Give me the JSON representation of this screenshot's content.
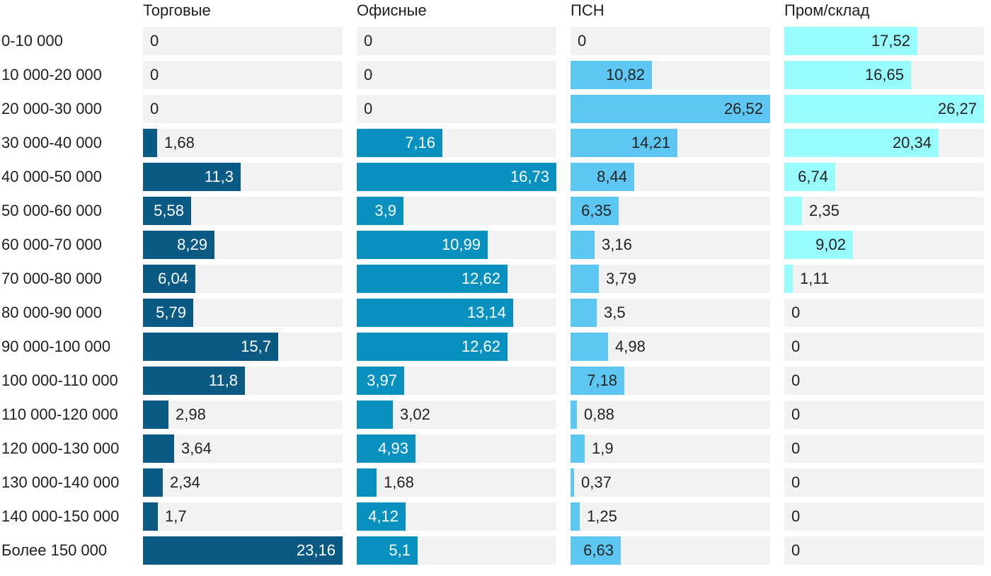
{
  "chart_data": {
    "type": "bar",
    "orientation": "horizontal",
    "layout": "small-multiples",
    "categories": [
      "0-10 000",
      "10 000-20 000",
      "20 000-30 000",
      "30 000-40 000",
      "40 000-50 000",
      "50 000-60 000",
      "60 000-70 000",
      "70 000-80 000",
      "80 000-90 000",
      "90 000-100 000",
      "100 000-110 000",
      "110 000-120 000",
      "120 000-130 000",
      "130 000-140 000",
      "140 000-150 000",
      "Более 150 000"
    ],
    "series": [
      {
        "name": "Торговые",
        "color": "#0a5a84",
        "max": 23.16,
        "values": [
          0,
          0,
          0,
          1.68,
          11.3,
          5.58,
          8.29,
          6.04,
          5.79,
          15.7,
          11.8,
          2.98,
          3.64,
          2.34,
          1.7,
          23.16
        ],
        "labels": [
          "0",
          "0",
          "0",
          "1,68",
          "11,3",
          "5,58",
          "8,29",
          "6,04",
          "5,79",
          "15,7",
          "11,8",
          "2,98",
          "3,64",
          "2,34",
          "1,7",
          "23,16"
        ]
      },
      {
        "name": "Офисные",
        "color": "#0891bf",
        "max": 16.73,
        "values": [
          0,
          0,
          0,
          7.16,
          16.73,
          3.9,
          10.99,
          12.62,
          13.14,
          12.62,
          3.97,
          3.02,
          4.93,
          1.68,
          4.12,
          5.1
        ],
        "labels": [
          "0",
          "0",
          "0",
          "7,16",
          "16,73",
          "3,9",
          "10,99",
          "12,62",
          "13,14",
          "12,62",
          "3,97",
          "3,02",
          "4,93",
          "1,68",
          "4,12",
          "5,1"
        ]
      },
      {
        "name": "ПСН",
        "color": "#5ec6f3",
        "max": 26.52,
        "values": [
          0,
          10.82,
          26.52,
          14.21,
          8.44,
          6.35,
          3.16,
          3.79,
          3.5,
          4.98,
          7.18,
          0.88,
          1.9,
          0.37,
          1.25,
          6.63
        ],
        "labels": [
          "0",
          "10,82",
          "26,52",
          "14,21",
          "8,44",
          "6,35",
          "3,16",
          "3,79",
          "3,5",
          "4,98",
          "7,18",
          "0,88",
          "1,9",
          "0,37",
          "1,25",
          "6,63"
        ]
      },
      {
        "name": "Пром/склад",
        "color": "#98fcff",
        "max": 26.27,
        "values": [
          17.52,
          16.65,
          26.27,
          20.34,
          6.74,
          2.35,
          9.02,
          1.11,
          0,
          0,
          0,
          0,
          0,
          0,
          0,
          0
        ],
        "labels": [
          "17,52",
          "16,65",
          "26,27",
          "20,34",
          "6,74",
          "2,35",
          "9,02",
          "1,11",
          "0",
          "0",
          "0",
          "0",
          "0",
          "0",
          "0",
          "0"
        ]
      }
    ]
  }
}
